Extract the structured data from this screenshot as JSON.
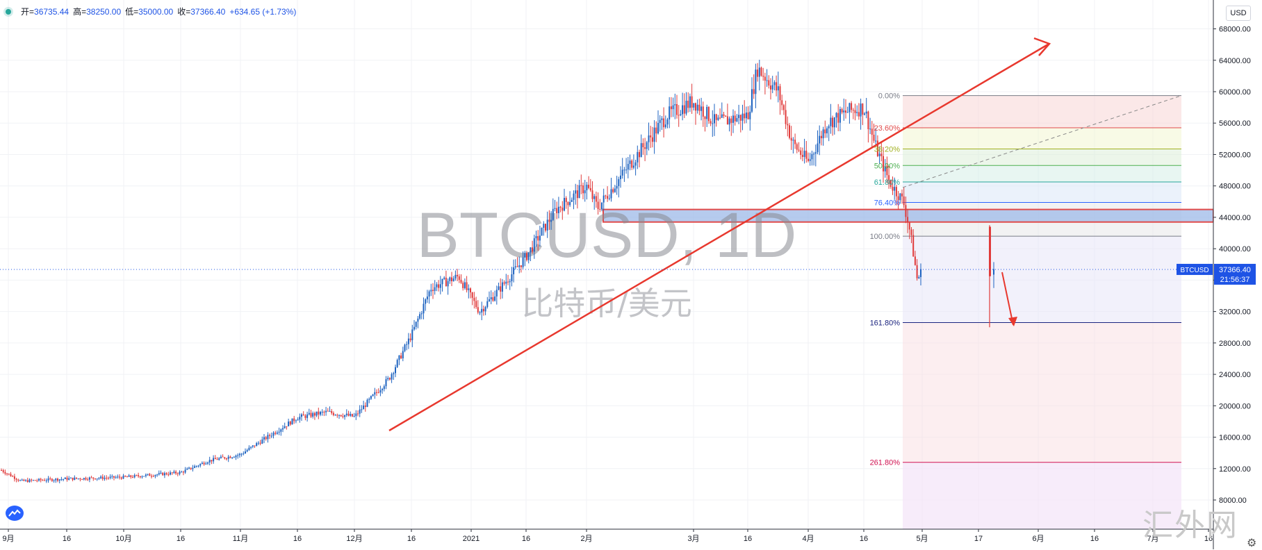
{
  "ohlc": {
    "open_label": "开=",
    "open": "36735.44",
    "high_label": "高=",
    "high": "38250.00",
    "low_label": "低=",
    "low": "35000.00",
    "close_label": "收=",
    "close": "37366.40",
    "change": "+634.65 (+1.73%)"
  },
  "currency_button": "USD",
  "watermark": {
    "symbol": "BTCUSD, 1D",
    "name": "比特币/美元"
  },
  "site_watermark": "汇外网",
  "price_label": {
    "symbol": "BTCUSD",
    "price": "37366.40",
    "countdown": "21:56:37"
  },
  "colors": {
    "up": "#1e63c0",
    "down": "#e03a3a",
    "trend": "#e8382e",
    "grid": "#eef0f3"
  },
  "icons": [
    "status-dot-icon",
    "tradingview-logo-icon",
    "settings-gear-icon"
  ],
  "chart_data": {
    "type": "candlestick",
    "symbol": "BTCUSD",
    "interval": "1D",
    "x_tick_labels": [
      "9月",
      "16",
      "10月",
      "16",
      "11月",
      "16",
      "12月",
      "16",
      "2021",
      "16",
      "2月",
      "3月",
      "16",
      "4月",
      "16",
      "5月",
      "17",
      "6月",
      "16",
      "7月",
      "16"
    ],
    "y_tick_labels": [
      "8000.00",
      "12000.00",
      "16000.00",
      "20000.00",
      "24000.00",
      "28000.00",
      "32000.00",
      "36000.00",
      "40000.00",
      "44000.00",
      "48000.00",
      "52000.00",
      "56000.00",
      "60000.00",
      "64000.00",
      "68000.00"
    ],
    "ylim": [
      4500,
      70000
    ],
    "last_price": 37366.4,
    "fibonacci_levels": [
      {
        "label": "0.00%",
        "price": 59500,
        "color": "#787b86"
      },
      {
        "label": "23.60%",
        "price": 55400,
        "color": "#e04a4a"
      },
      {
        "label": "38.20%",
        "price": 52700,
        "color": "#a0b020"
      },
      {
        "label": "50.00%",
        "price": 50600,
        "color": "#4caf50"
      },
      {
        "label": "61.80%",
        "price": 48500,
        "color": "#26a69a"
      },
      {
        "label": "76.40%",
        "price": 45900,
        "color": "#2962ff"
      },
      {
        "label": "100.00%",
        "price": 41600,
        "color": "#787b86"
      },
      {
        "label": "161.80%",
        "price": 30600,
        "color": "#1a237e"
      },
      {
        "label": "261.80%",
        "price": 12800,
        "color": "#d01050"
      }
    ],
    "support_zone": {
      "from": 43400,
      "to": 45000
    },
    "monthly_closes": [
      {
        "month": "9月",
        "price": 10800
      },
      {
        "month": "10月",
        "price": 13800
      },
      {
        "month": "11月",
        "price": 19700
      },
      {
        "month": "12月",
        "price": 29000
      },
      {
        "month": "2021-01",
        "price": 33100
      },
      {
        "month": "2月",
        "price": 45200
      },
      {
        "month": "3月",
        "price": 58800
      },
      {
        "month": "4月",
        "price": 57700
      },
      {
        "month": "5月",
        "price": 37366
      }
    ]
  }
}
